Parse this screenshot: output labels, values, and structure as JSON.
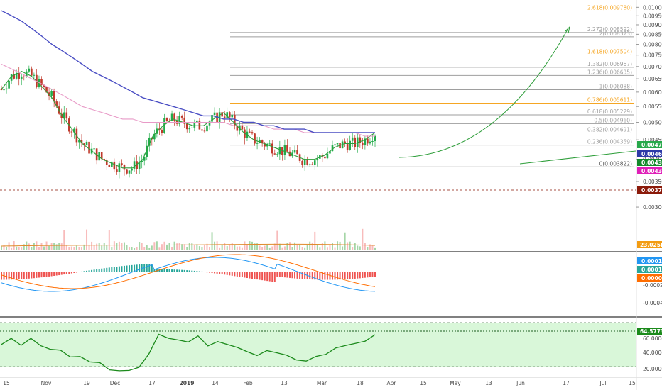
{
  "colors": {
    "up": "#26a69a",
    "up_candle": "#22ab4a",
    "down": "#ef5350",
    "down_candle": "#c0392b",
    "ma_long": "#4b4fc4",
    "ma_mid": "#e89ac7",
    "ma_short": "#2e9e3a",
    "fib_orange": "#f5a623",
    "fib_gray": "#9e9e9e",
    "macd_line": "#2196f3",
    "signal_line": "#ff6d00",
    "rsi_line": "#1b8a1b",
    "rsi_zone": "#d9f7d9"
  },
  "price_axis": {
    "ticks": [
      "0.010000",
      "0.009500",
      "0.009000",
      "0.008500",
      "0.008000",
      "0.007500",
      "0.007000",
      "0.006500",
      "0.006000",
      "0.005500",
      "0.005000",
      "0.004500",
      "0.004000",
      "0.003500",
      "0.003000"
    ],
    "badges": [
      {
        "label": "0.004710",
        "color": "#27a84a"
      },
      {
        "label": "0.004652",
        "color": "#2d3aa8"
      },
      {
        "label": "0.004393",
        "color": "#138a2b"
      },
      {
        "label": "0.004324",
        "color": "#e01fb8"
      },
      {
        "label": "0.003738",
        "color": "#8b1a0a"
      }
    ]
  },
  "fib_levels": [
    {
      "label": "2.618(0.009780)",
      "value": 0.00978,
      "color": "#f5a623"
    },
    {
      "label": "2.272(0.008592)",
      "value": 0.008592,
      "color": "#9e9e9e"
    },
    {
      "label": "2(0.008373)",
      "value": 0.008373,
      "color": "#9e9e9e"
    },
    {
      "label": "1.618(0.007504)",
      "value": 0.007504,
      "color": "#f5a623"
    },
    {
      "label": "1.382(0.006967)",
      "value": 0.006967,
      "color": "#9e9e9e"
    },
    {
      "label": "1.236(0.006635)",
      "value": 0.006635,
      "color": "#9e9e9e"
    },
    {
      "label": "1(0.006088)",
      "value": 0.006088,
      "color": "#9e9e9e"
    },
    {
      "label": "0.786(0.005611)",
      "value": 0.005611,
      "color": "#f5a623"
    },
    {
      "label": "0.618(0.005229)",
      "value": 0.005229,
      "color": "#9e9e9e"
    },
    {
      "label": "0.5(0.004960)",
      "value": 0.00496,
      "color": "#9e9e9e"
    },
    {
      "label": "0.382(0.004691)",
      "value": 0.004691,
      "color": "#9e9e9e"
    },
    {
      "label": "0.236(0.004359)",
      "value": 0.004359,
      "color": "#9e9e9e"
    },
    {
      "label": "0(0.003822)",
      "value": 0.003822,
      "color": "#555555"
    }
  ],
  "volume": {
    "badge": "23.025K",
    "badge_color": "#f39c12"
  },
  "macd": {
    "ticks": [
      "-0.0002",
      "-0.0004"
    ],
    "badges": [
      {
        "label": "0.0001",
        "color": "#2196f3"
      },
      {
        "label": "0.0001",
        "color": "#26a69a"
      },
      {
        "label": "0.0000",
        "color": "#ff6d00"
      }
    ]
  },
  "rsi": {
    "ticks": [
      "60.0000",
      "40.0000",
      "20.0000"
    ],
    "badge": "64.5773",
    "badge_color": "#1b8a1b"
  },
  "time_axis": {
    "labels": [
      "15",
      "Nov",
      "19",
      "Dec",
      "17",
      "2019",
      "14",
      "Feb",
      "13",
      "Mar",
      "18",
      "Apr",
      "15",
      "May",
      "13",
      "Jun",
      "17",
      "Jul",
      "15"
    ]
  },
  "chart_data": [
    {
      "type": "line",
      "panel": "price",
      "ylim": [
        0.0029,
        0.0101
      ],
      "scale": "log",
      "series": [
        {
          "values": [
            0.0061,
            0.0066,
            0.0068,
            0.0066,
            0.0062,
            0.0058,
            0.0052,
            0.0048,
            0.0044,
            0.0042,
            0.004,
            0.0039,
            0.0038,
            0.0038,
            0.004,
            0.0046,
            0.0049,
            0.0051,
            0.005,
            0.0049,
            0.0049,
            0.0051,
            0.0053,
            0.005,
            0.0047,
            0.0045,
            0.0044,
            0.0043,
            0.0042,
            0.0041,
            0.004,
            0.004,
            0.0041,
            0.0043,
            0.0044,
            0.0044,
            0.0045,
            0.0047
          ]
        },
        {
          "values": [
            0.0071,
            0.0069,
            0.0067,
            0.0065,
            0.0063,
            0.0061,
            0.0059,
            0.0057,
            0.0055,
            0.0054,
            0.0053,
            0.0052,
            0.0051,
            0.0051,
            0.005,
            0.005,
            0.005,
            0.005,
            0.005,
            0.005,
            0.005,
            0.005,
            0.005,
            0.0049,
            0.0049,
            0.0049,
            0.0049,
            0.0048,
            0.0048,
            0.0048,
            0.0047,
            0.0047,
            0.0047,
            0.0047,
            0.0047,
            0.0047,
            0.0046,
            0.0046
          ]
        },
        {
          "values": [
            0.0098,
            0.0095,
            0.0092,
            0.0088,
            0.0084,
            0.008,
            0.0077,
            0.0074,
            0.0071,
            0.0068,
            0.0066,
            0.0064,
            0.0062,
            0.006,
            0.0058,
            0.0057,
            0.0056,
            0.0055,
            0.0054,
            0.0053,
            0.0052,
            0.0052,
            0.0051,
            0.0051,
            0.005,
            0.005,
            0.0049,
            0.0049,
            0.0048,
            0.0048,
            0.0048,
            0.0047,
            0.0047,
            0.0047,
            0.0047,
            0.0047,
            0.0047,
            0.0047
          ]
        }
      ]
    },
    {
      "type": "line",
      "panel": "rsi",
      "ylim": [
        15,
        85
      ],
      "series": [
        {
          "values": [
            52,
            60,
            56,
            62,
            55,
            48,
            50,
            42,
            38,
            35,
            30,
            26,
            24,
            25,
            30,
            42,
            68,
            60,
            58,
            57,
            62,
            55,
            58,
            52,
            48,
            46,
            44,
            45,
            42,
            40,
            38,
            36,
            40,
            44,
            48,
            52,
            55,
            60,
            64.5773
          ]
        }
      ]
    }
  ]
}
